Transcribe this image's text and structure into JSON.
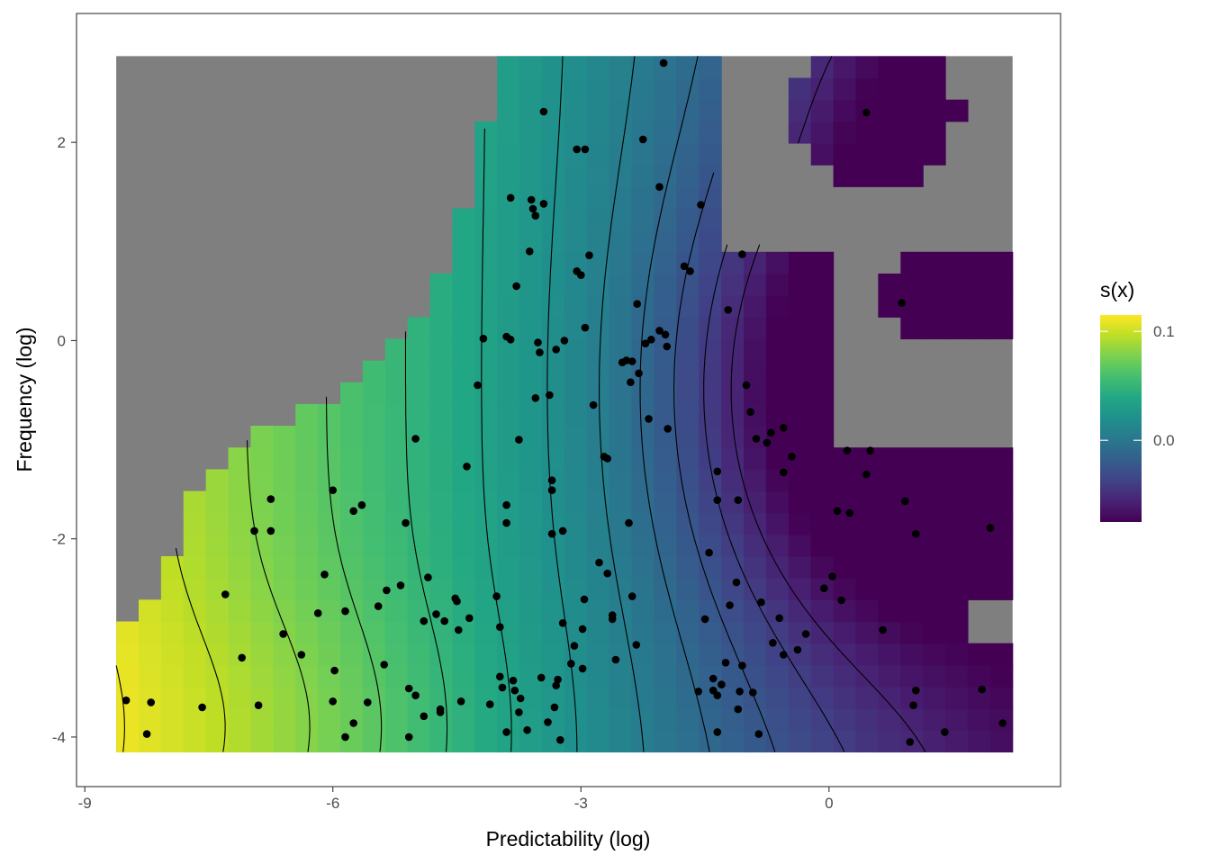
{
  "chart_data": {
    "type": "heatmap",
    "xlabel": "Predictability (log)",
    "ylabel": "Frequency (log)",
    "x_ticks": [
      -9,
      -6,
      -3,
      0
    ],
    "y_ticks": [
      -4,
      -2,
      0,
      2
    ],
    "xlim": [
      -9.1,
      2.8
    ],
    "ylim": [
      -4.5,
      3.3
    ],
    "grid": false,
    "colorscale": "viridis",
    "na_color": "#7f7f7f",
    "legend": {
      "title": "s(x)",
      "placement": "right",
      "range": [
        -0.075,
        0.115
      ],
      "ticks": [
        0.0,
        0.1
      ],
      "tick_labels": [
        "0.0",
        "0.1"
      ]
    },
    "heat_grid": {
      "x_range": [
        -8.62,
        2.22
      ],
      "y_range": [
        -4.15,
        2.87
      ],
      "nx": 40,
      "ny": 32
    },
    "contour_levels": [
      0.11,
      0.095,
      0.08,
      0.065,
      0.05,
      0.035,
      0.02,
      0.005,
      -0.01,
      -0.025,
      -0.04,
      -0.055
    ],
    "points": [
      [
        -8.5,
        -3.63
      ],
      [
        -8.25,
        -3.97
      ],
      [
        -8.2,
        -3.65
      ],
      [
        -7.58,
        -3.7
      ],
      [
        -7.3,
        -2.56
      ],
      [
        -7.1,
        -3.2
      ],
      [
        -6.95,
        -1.92
      ],
      [
        -6.9,
        -3.68
      ],
      [
        -6.75,
        -1.6
      ],
      [
        -6.75,
        -1.92
      ],
      [
        -6.6,
        -2.96
      ],
      [
        -6.38,
        -3.17
      ],
      [
        -6.18,
        -2.75
      ],
      [
        -6.1,
        -2.36
      ],
      [
        -6.0,
        -1.51
      ],
      [
        -5.98,
        -3.33
      ],
      [
        -6.0,
        -3.64
      ],
      [
        -5.85,
        -2.73
      ],
      [
        -5.85,
        -4.0
      ],
      [
        -5.75,
        -3.86
      ],
      [
        -5.75,
        -1.72
      ],
      [
        -5.65,
        -1.66
      ],
      [
        -5.58,
        -3.65
      ],
      [
        -5.45,
        -2.68
      ],
      [
        -5.38,
        -3.27
      ],
      [
        -5.35,
        -2.52
      ],
      [
        -5.18,
        -2.47
      ],
      [
        -5.12,
        -1.84
      ],
      [
        -5.08,
        -3.51
      ],
      [
        -5.08,
        -4.0
      ],
      [
        -5.0,
        -3.58
      ],
      [
        -5.0,
        -0.99
      ],
      [
        -4.9,
        -2.83
      ],
      [
        -4.9,
        -3.79
      ],
      [
        -4.85,
        -2.39
      ],
      [
        -4.75,
        -2.76
      ],
      [
        -4.7,
        -3.72
      ],
      [
        -4.7,
        -3.75
      ],
      [
        -4.65,
        -2.83
      ],
      [
        -4.52,
        -2.6
      ],
      [
        -4.5,
        -2.63
      ],
      [
        -4.48,
        -2.92
      ],
      [
        -4.45,
        -3.64
      ],
      [
        -4.38,
        -1.27
      ],
      [
        -4.35,
        -2.8
      ],
      [
        -4.25,
        -0.45
      ],
      [
        -4.18,
        0.02
      ],
      [
        -4.1,
        -3.67
      ],
      [
        -4.02,
        -2.58
      ],
      [
        -3.98,
        -2.89
      ],
      [
        -3.98,
        -3.39
      ],
      [
        -3.95,
        -3.5
      ],
      [
        -3.9,
        0.04
      ],
      [
        -3.9,
        -1.66
      ],
      [
        -3.9,
        -1.84
      ],
      [
        -3.9,
        -3.95
      ],
      [
        -3.85,
        1.44
      ],
      [
        -3.85,
        0.01
      ],
      [
        -3.82,
        -3.43
      ],
      [
        -3.8,
        -3.53
      ],
      [
        -3.78,
        0.55
      ],
      [
        -3.75,
        -3.75
      ],
      [
        -3.75,
        -1.0
      ],
      [
        -3.73,
        -3.61
      ],
      [
        -3.65,
        -3.93
      ],
      [
        -3.62,
        0.9
      ],
      [
        -3.6,
        1.42
      ],
      [
        -3.58,
        1.33
      ],
      [
        -3.55,
        1.26
      ],
      [
        -3.55,
        -0.58
      ],
      [
        -3.52,
        -0.02
      ],
      [
        -3.5,
        -0.12
      ],
      [
        -3.48,
        -3.4
      ],
      [
        -3.45,
        1.38
      ],
      [
        -3.4,
        -3.85
      ],
      [
        -3.38,
        -0.55
      ],
      [
        -3.35,
        -1.41
      ],
      [
        -3.35,
        -1.51
      ],
      [
        -3.35,
        -1.95
      ],
      [
        -3.32,
        -3.7
      ],
      [
        -3.3,
        -0.09
      ],
      [
        -3.3,
        -3.48
      ],
      [
        -3.28,
        -3.42
      ],
      [
        -3.25,
        -4.03
      ],
      [
        -3.22,
        -2.85
      ],
      [
        -3.22,
        -1.92
      ],
      [
        -3.2,
        0.0
      ],
      [
        -3.12,
        -3.26
      ],
      [
        -3.08,
        -3.08
      ],
      [
        -3.05,
        0.7
      ],
      [
        -3.0,
        0.66
      ],
      [
        -2.98,
        -2.91
      ],
      [
        -2.98,
        -3.31
      ],
      [
        -2.96,
        -2.61
      ],
      [
        -2.95,
        0.13
      ],
      [
        -2.9,
        0.86
      ],
      [
        -2.85,
        -0.65
      ],
      [
        -2.78,
        -2.24
      ],
      [
        -2.72,
        -1.17
      ],
      [
        -2.68,
        -1.19
      ],
      [
        -2.68,
        -2.35
      ],
      [
        -2.62,
        -2.77
      ],
      [
        -2.62,
        -2.81
      ],
      [
        -2.58,
        -3.22
      ],
      [
        -2.5,
        -0.22
      ],
      [
        -2.45,
        -0.2
      ],
      [
        -2.42,
        -1.84
      ],
      [
        -2.4,
        -0.42
      ],
      [
        -2.38,
        -2.58
      ],
      [
        -2.38,
        -0.21
      ],
      [
        -2.33,
        -3.07
      ],
      [
        -2.32,
        0.37
      ],
      [
        -2.3,
        -0.33
      ],
      [
        -2.22,
        -0.03
      ],
      [
        -2.18,
        -0.79
      ],
      [
        -2.15,
        0.01
      ],
      [
        -2.05,
        0.1
      ],
      [
        -1.98,
        0.06
      ],
      [
        -1.96,
        -0.06
      ],
      [
        -1.95,
        -0.89
      ],
      [
        -1.75,
        0.75
      ],
      [
        -1.68,
        0.7
      ],
      [
        -1.58,
        -3.54
      ],
      [
        -1.5,
        -2.81
      ],
      [
        -1.45,
        -2.14
      ],
      [
        -1.4,
        -3.41
      ],
      [
        -1.4,
        -3.53
      ],
      [
        -1.35,
        -3.58
      ],
      [
        -1.35,
        -3.95
      ],
      [
        -1.35,
        -1.32
      ],
      [
        -1.35,
        -1.61
      ],
      [
        -1.3,
        -3.47
      ],
      [
        -1.25,
        -3.25
      ],
      [
        -1.22,
        0.31
      ],
      [
        -1.2,
        -2.67
      ],
      [
        -1.12,
        -2.44
      ],
      [
        -1.1,
        -1.61
      ],
      [
        -1.1,
        -3.72
      ],
      [
        -1.08,
        -3.54
      ],
      [
        -1.05,
        -3.28
      ],
      [
        -1.05,
        0.87
      ],
      [
        -1.0,
        -0.45
      ],
      [
        -0.95,
        -0.72
      ],
      [
        -0.92,
        -3.55
      ],
      [
        -0.88,
        -0.99
      ],
      [
        -0.85,
        -3.97
      ],
      [
        -0.82,
        -2.64
      ],
      [
        -0.75,
        -1.03
      ],
      [
        -0.7,
        -0.93
      ],
      [
        -0.68,
        -3.05
      ],
      [
        -0.6,
        -2.8
      ],
      [
        -0.55,
        -1.33
      ],
      [
        -0.55,
        -0.88
      ],
      [
        -0.55,
        -3.17
      ],
      [
        -0.45,
        -1.17
      ],
      [
        -0.38,
        -3.12
      ],
      [
        -0.28,
        -2.96
      ],
      [
        -0.06,
        -2.5
      ],
      [
        0.04,
        -2.38
      ],
      [
        0.1,
        -1.72
      ],
      [
        0.15,
        -2.62
      ],
      [
        0.22,
        -1.11
      ],
      [
        0.25,
        -1.74
      ],
      [
        0.45,
        -1.35
      ],
      [
        0.5,
        -1.11
      ],
      [
        0.45,
        2.3
      ],
      [
        0.65,
        -2.92
      ],
      [
        0.88,
        0.38
      ],
      [
        0.92,
        -1.62
      ],
      [
        0.98,
        -4.05
      ],
      [
        1.02,
        -3.68
      ],
      [
        1.05,
        -3.53
      ],
      [
        1.05,
        -1.95
      ],
      [
        1.4,
        -3.95
      ],
      [
        1.85,
        -3.52
      ],
      [
        1.95,
        -1.89
      ],
      [
        2.1,
        -3.86
      ],
      [
        -2.95,
        1.93
      ],
      [
        -3.05,
        1.93
      ],
      [
        -2.25,
        2.03
      ],
      [
        -2.05,
        1.55
      ],
      [
        -1.55,
        1.37
      ],
      [
        -3.45,
        2.31
      ],
      [
        -2.0,
        2.8
      ]
    ]
  }
}
